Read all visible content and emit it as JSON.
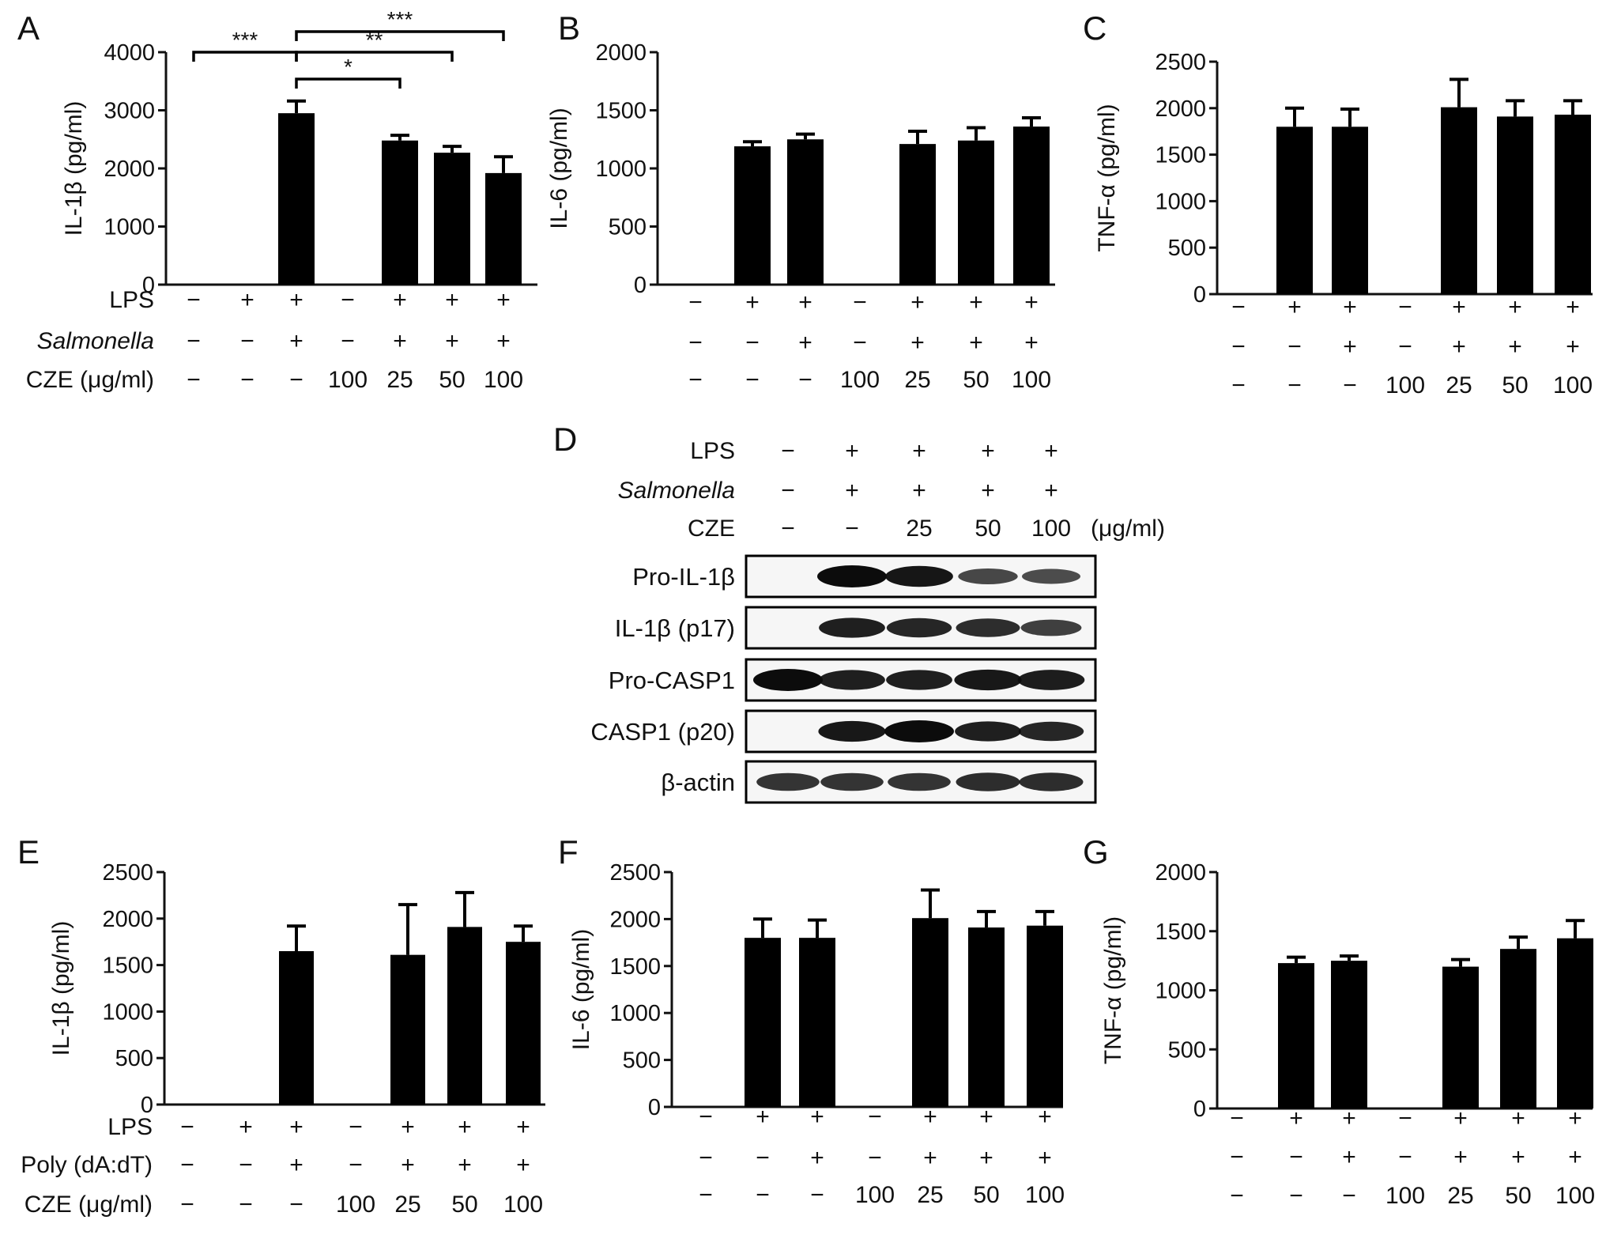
{
  "chart_data": [
    {
      "id": "A",
      "type": "bar",
      "panel_label": "A",
      "ylabel": "IL-1β (pg/ml)",
      "ylim": [
        0,
        4000
      ],
      "yticks": [
        0,
        1000,
        2000,
        3000,
        4000
      ],
      "values": [
        0,
        0,
        2950,
        0,
        2480,
        2270,
        1920
      ],
      "errors": [
        0,
        0,
        210,
        0,
        90,
        110,
        280
      ],
      "rows": [
        {
          "label": "LPS",
          "italic": false,
          "cells": [
            "−",
            "+",
            "+",
            "−",
            "+",
            "+",
            "+"
          ]
        },
        {
          "label": "Salmonella",
          "italic": true,
          "cells": [
            "−",
            "−",
            "+",
            "−",
            "+",
            "+",
            "+"
          ]
        },
        {
          "label": "CZE (μg/ml)",
          "italic": false,
          "cells": [
            "−",
            "−",
            "−",
            "100",
            "25",
            "50",
            "100"
          ]
        }
      ],
      "significance": [
        {
          "from": 0,
          "to": 2,
          "label": "***",
          "level": 1
        },
        {
          "from": 2,
          "to": 4,
          "label": "*",
          "level": 0
        },
        {
          "from": 2,
          "to": 5,
          "label": "**",
          "level": 1
        },
        {
          "from": 2,
          "to": 6,
          "label": "***",
          "level": 2
        }
      ]
    },
    {
      "id": "B",
      "type": "bar",
      "panel_label": "B",
      "ylabel": "IL-6 (pg/ml)",
      "ylim": [
        0,
        2000
      ],
      "yticks": [
        0,
        500,
        1000,
        1500,
        2000
      ],
      "values": [
        0,
        1190,
        1250,
        0,
        1210,
        1240,
        1360
      ],
      "errors": [
        0,
        40,
        45,
        0,
        110,
        110,
        75
      ],
      "rows": [
        {
          "label": "",
          "italic": false,
          "cells": [
            "−",
            "+",
            "+",
            "−",
            "+",
            "+",
            "+"
          ]
        },
        {
          "label": "",
          "italic": false,
          "cells": [
            "−",
            "−",
            "+",
            "−",
            "+",
            "+",
            "+"
          ]
        },
        {
          "label": "",
          "italic": false,
          "cells": [
            "−",
            "−",
            "−",
            "100",
            "25",
            "50",
            "100"
          ]
        }
      ],
      "significance": []
    },
    {
      "id": "C",
      "type": "bar",
      "panel_label": "C",
      "ylabel": "TNF-α (pg/ml)",
      "ylim": [
        0,
        2500
      ],
      "yticks": [
        0,
        500,
        1000,
        1500,
        2000,
        2500
      ],
      "values": [
        0,
        1800,
        1800,
        0,
        2010,
        1910,
        1930
      ],
      "errors": [
        0,
        200,
        190,
        0,
        300,
        170,
        150
      ],
      "rows": [
        {
          "label": "",
          "italic": false,
          "cells": [
            "−",
            "+",
            "+",
            "−",
            "+",
            "+",
            "+"
          ]
        },
        {
          "label": "",
          "italic": false,
          "cells": [
            "−",
            "−",
            "+",
            "−",
            "+",
            "+",
            "+"
          ]
        },
        {
          "label": "",
          "italic": false,
          "cells": [
            "−",
            "−",
            "−",
            "100",
            "25",
            "50",
            "100"
          ]
        }
      ],
      "significance": []
    },
    {
      "id": "E",
      "type": "bar",
      "panel_label": "E",
      "ylabel": "IL-1β (pg/ml)",
      "ylim": [
        0,
        2500
      ],
      "yticks": [
        0,
        500,
        1000,
        1500,
        2000,
        2500
      ],
      "values": [
        0,
        0,
        1650,
        0,
        1610,
        1910,
        1750
      ],
      "errors": [
        0,
        0,
        270,
        0,
        540,
        370,
        170
      ],
      "rows": [
        {
          "label": "LPS",
          "italic": false,
          "cells": [
            "−",
            "+",
            "+",
            "−",
            "+",
            "+",
            "+"
          ]
        },
        {
          "label": "Poly (dA:dT)",
          "italic": false,
          "cells": [
            "−",
            "−",
            "+",
            "−",
            "+",
            "+",
            "+"
          ]
        },
        {
          "label": "CZE (μg/ml)",
          "italic": false,
          "cells": [
            "−",
            "−",
            "−",
            "100",
            "25",
            "50",
            "100"
          ]
        }
      ],
      "significance": []
    },
    {
      "id": "F",
      "type": "bar",
      "panel_label": "F",
      "ylabel": "IL-6 (pg/ml)",
      "ylim": [
        0,
        2500
      ],
      "yticks": [
        0,
        500,
        1000,
        1500,
        2000,
        2500
      ],
      "values": [
        0,
        1800,
        1800,
        0,
        2010,
        1910,
        1930
      ],
      "errors": [
        0,
        200,
        190,
        0,
        300,
        170,
        150
      ],
      "rows": [
        {
          "label": "",
          "italic": false,
          "cells": [
            "−",
            "+",
            "+",
            "−",
            "+",
            "+",
            "+"
          ]
        },
        {
          "label": "",
          "italic": false,
          "cells": [
            "−",
            "−",
            "+",
            "−",
            "+",
            "+",
            "+"
          ]
        },
        {
          "label": "",
          "italic": false,
          "cells": [
            "−",
            "−",
            "−",
            "100",
            "25",
            "50",
            "100"
          ]
        }
      ],
      "significance": []
    },
    {
      "id": "G",
      "type": "bar",
      "panel_label": "G",
      "ylabel": "TNF-α (pg/ml)",
      "ylim": [
        0,
        2000
      ],
      "yticks": [
        0,
        500,
        1000,
        1500,
        2000
      ],
      "values": [
        0,
        1230,
        1250,
        0,
        1200,
        1350,
        1440
      ],
      "errors": [
        0,
        50,
        40,
        0,
        60,
        100,
        150
      ],
      "rows": [
        {
          "label": "",
          "italic": false,
          "cells": [
            "−",
            "+",
            "+",
            "−",
            "+",
            "+",
            "+"
          ]
        },
        {
          "label": "",
          "italic": false,
          "cells": [
            "−",
            "−",
            "+",
            "−",
            "+",
            "+",
            "+"
          ]
        },
        {
          "label": "",
          "italic": false,
          "cells": [
            "−",
            "−",
            "−",
            "100",
            "25",
            "50",
            "100"
          ]
        }
      ],
      "significance": []
    }
  ],
  "blot": {
    "panel_label": "D",
    "rows": [
      {
        "label": "LPS",
        "italic": false,
        "cells": [
          "−",
          "+",
          "+",
          "+",
          "+"
        ]
      },
      {
        "label": "Salmonella",
        "italic": true,
        "cells": [
          "−",
          "+",
          "+",
          "+",
          "+"
        ]
      },
      {
        "label": "CZE",
        "italic": false,
        "cells": [
          "−",
          "−",
          "25",
          "50",
          "100"
        ]
      }
    ],
    "unit": "(μg/ml)",
    "strips": [
      {
        "label": "Pro-IL-1β",
        "intensity": [
          0.0,
          1.0,
          0.92,
          0.55,
          0.5
        ]
      },
      {
        "label": "IL-1β (p17)",
        "intensity": [
          0.0,
          0.85,
          0.8,
          0.75,
          0.6
        ]
      },
      {
        "label": "Pro-CASP1",
        "intensity": [
          1.0,
          0.85,
          0.85,
          0.9,
          0.88
        ]
      },
      {
        "label": "CASP1 (p20)",
        "intensity": [
          0.0,
          0.9,
          1.0,
          0.85,
          0.8
        ]
      },
      {
        "label": "β-actin",
        "intensity": [
          0.7,
          0.7,
          0.7,
          0.75,
          0.75
        ]
      }
    ]
  }
}
